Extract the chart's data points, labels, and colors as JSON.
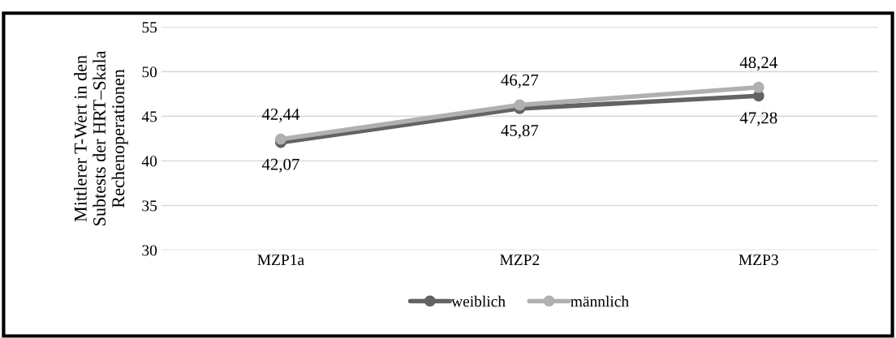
{
  "chart_data": {
    "type": "line",
    "ylabel": "Mittlerer T-Wert in den\nSubtests der HRT–Skala\nRechenoperationen",
    "categories": [
      "MZP1a",
      "MZP2",
      "MZP3"
    ],
    "series": [
      {
        "name": "weiblich",
        "color": "#636363",
        "values": [
          42.07,
          45.87,
          47.28
        ],
        "value_labels": [
          "42,07",
          "45,87",
          "47,28"
        ]
      },
      {
        "name": "männlich",
        "color": "#b0b0b0",
        "values": [
          42.44,
          46.27,
          48.24
        ],
        "value_labels": [
          "42,44",
          "46,27",
          "48,24"
        ]
      }
    ],
    "ylim": [
      30,
      55
    ],
    "yticks": [
      30,
      35,
      40,
      45,
      50,
      55
    ],
    "grid": "y",
    "legend": "bottom",
    "marker": "circle",
    "line_style": "solid"
  }
}
